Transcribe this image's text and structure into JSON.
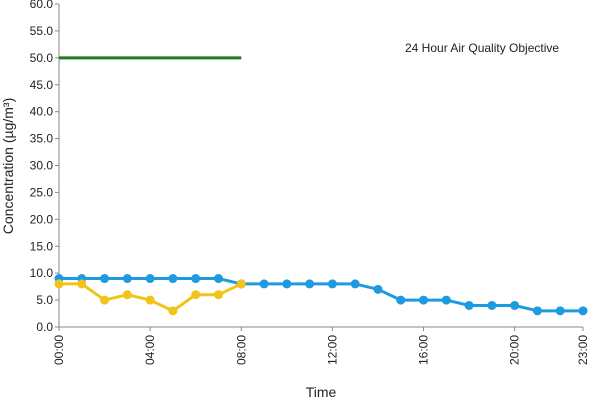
{
  "chart_data": {
    "type": "line",
    "xlabel": "Time",
    "ylabel": "Concentration (µg/m³)",
    "ylim": [
      0,
      60
    ],
    "y_ticks": [
      "0.0",
      "5.0",
      "10.0",
      "15.0",
      "20.0",
      "25.0",
      "30.0",
      "35.0",
      "40.0",
      "45.0",
      "50.0",
      "55.0",
      "60.0"
    ],
    "x_tick_labels": [
      "00:00",
      "04:00",
      "08:00",
      "12:00",
      "16:00",
      "20:00",
      "23:00"
    ],
    "x_tick_hours": [
      0,
      4,
      8,
      12,
      16,
      20,
      23
    ],
    "x_range": [
      0,
      23
    ],
    "grid": false,
    "annotations": [
      {
        "text": "24 Hour Air Quality Objective"
      }
    ],
    "objective_line": {
      "y": 50,
      "x_start": 0,
      "x_end": 8,
      "color": "#1f7a1f"
    },
    "series": [
      {
        "color": "#1e9be0",
        "x": [
          0,
          1,
          2,
          3,
          4,
          5,
          6,
          7,
          8,
          9,
          10,
          11,
          12,
          13,
          14,
          15,
          16,
          17,
          18,
          19,
          20,
          21,
          22,
          23
        ],
        "values": [
          9,
          9,
          9,
          9,
          9,
          9,
          9,
          9,
          8,
          8,
          8,
          8,
          8,
          8,
          7,
          5,
          5,
          5,
          4,
          4,
          4,
          3,
          3,
          3
        ]
      },
      {
        "color": "#f0c419",
        "x": [
          0,
          1,
          2,
          3,
          4,
          5,
          6,
          7,
          8
        ],
        "values": [
          8,
          8,
          5,
          6,
          5,
          3,
          6,
          6,
          8
        ]
      }
    ]
  }
}
